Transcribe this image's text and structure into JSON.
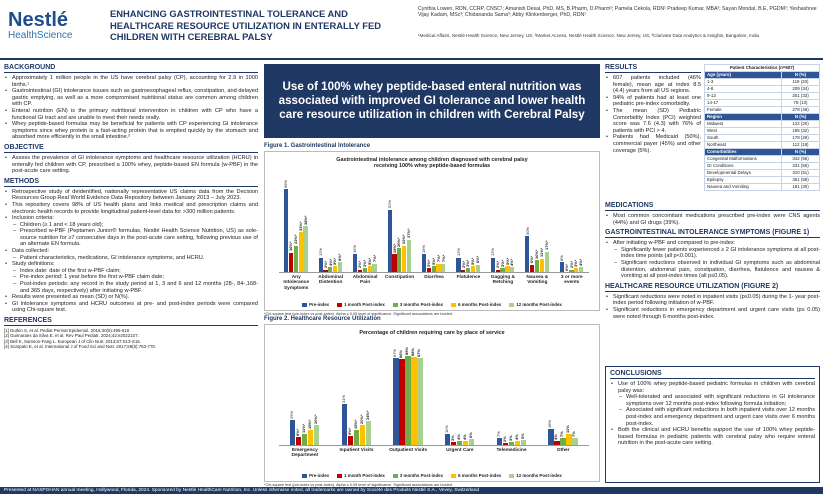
{
  "header": {
    "logo": [
      "Nestlé",
      "HealthScience"
    ],
    "title": "ENHANCING GASTROINTESTINAL TOLERANCE AND HEALTHCARE RESOURCE UTILIZATION IN ENTERALLY FED CHILDREN WITH CEREBRAL PALSY",
    "authors": "Cynthia Lowen, RDN, CCRP, CNSC¹; Amanish Desai, PhD, MS, B.Pharm, D.Pharm²; Pamela Cekola, RDN¹ Pradeep Kumar, MBA²; Sayan Mondal, B.E, PGDM²; Yeshashree Vijay Kadam, MSc³; Chidananda Sama³; Abby Klinkenberger, PhD, RDN¹",
    "affiliations": "¹Medical Affairs, Nestlé Health Science, New Jersey, US; ²Market Access, Nestlé Health Science, New Jersey, US; ³Clarivate Data Analytics & Insights, Bangalore, India"
  },
  "left": [
    {
      "heading": "BACKGROUND",
      "items": [
        {
          "level": 1,
          "text": "Approximately 1 million people in the US have cerebral palsy (CP), accounting for 2.9 in 1000 births.¹"
        },
        {
          "level": 1,
          "text": "Gastrointestinal (GI) intolerance issues such as gastroesophageal reflux, constipation, and delayed gastric emptying, as well as a more compromised nutritional status are common among children with CP."
        },
        {
          "level": 1,
          "text": "Enteral nutrition (EN) is the primary nutritional intervention in children with CP who have a functional GI tract and are unable to meet their needs orally."
        },
        {
          "level": 1,
          "text": "Whey peptide-based formulas may be beneficial for patients with CP experiencing GI intolerance symptoms since whey protein is a fast-acting protein that is emptied quickly by the stomach and absorbed more efficiently in the small intestine.²"
        }
      ]
    },
    {
      "heading": "OBJECTIVE",
      "items": [
        {
          "level": 1,
          "text": "Assess the prevalence of GI intolerance symptoms and healthcare resource utilization (HCRU) in enterally fed children with CP, prescribed a 100% whey, peptide-based EN formula (w-PBF) in the post-acute care setting."
        }
      ]
    },
    {
      "heading": "METHODS",
      "items": [
        {
          "level": 1,
          "text": "Retrospective study of deidentified, nationally representative US claims data from the Decision Resources Group Real World Evidence Data Repository between January 2013 – July 2023."
        },
        {
          "level": 1,
          "text": "This repository covers 98% of US health plans and links medical and prescription claims and electronic health records to provide longitudinal patient-level data for >300 million patients."
        },
        {
          "level": 1,
          "text": "Inclusion criteria:"
        },
        {
          "level": 2,
          "text": "Children (≥ 1 and < 18 years old);"
        },
        {
          "level": 2,
          "text": "Prescribed w-PBF (Peptamen Junior® formulas, Nestlé Health Science Nutrition, US) as sole-source nutrition for ≥7 consecutive days in the post-acute care setting, following previous use of an alternate EN formula."
        },
        {
          "level": 1,
          "text": "Data collected:"
        },
        {
          "level": 2,
          "text": "Patient characteristics, medications, GI intolerance symptoms, and HCRU."
        },
        {
          "level": 1,
          "text": "Study definitions:"
        },
        {
          "level": 2,
          "text": "Index date: date of the first w-PBF claim;"
        },
        {
          "level": 2,
          "text": "Pre-index period: 1 year before the first w-PBF claim date;"
        },
        {
          "level": 2,
          "text": "Post-index periods: any record in the study period at 1, 3 and 6 and 12 months (28-, 84-,168- and 365 days, respectively) after initiating w-PBF."
        },
        {
          "level": 1,
          "text": "Results were presented as mean (SD) or N(%)."
        },
        {
          "level": 1,
          "text": "GI intolerance symptoms and HCRU outcomes at pre- and post-index periods were compared using Chi-square test."
        }
      ]
    },
    {
      "heading": "REFERENCES",
      "items": [
        {
          "level": 0,
          "text": "[1] Durkin S, et al. Pediat Perinat Epidemiol. 2016;30(5):496-510."
        },
        {
          "level": 0,
          "text": "[2] Guimaraes da Silva E, et al. Rev Paul Pediatr. 2024;42:e2022107."
        },
        {
          "level": 0,
          "text": "[3] Bell K, Samson-Fang L. European J of Clin Nutr. 2013;67:S13-S16."
        },
        {
          "level": 0,
          "text": "[4] Scarpato E, et al. International J of Food Sci and Nutr. 2017;68(6):763-770."
        }
      ]
    }
  ],
  "banner": "Use of 100% whey peptide-based enteral nutrition was associated with improved GI tolerance and lower health care resource utilization in children with Cerebral Palsy",
  "figures": [
    {
      "label": "Figure 1. Gastrointestinal Intolerance",
      "title": "Gastrointestinal intolerance among children diagnosed with cerebral palsy receiving 100% whey peptide-based formulas",
      "categories": [
        "Any Intolerance Symptoms",
        "Abdominal Distention",
        "Abdominal Pain",
        "Constipation",
        "Diarrhea",
        "Flatulence",
        "Gagging & Retching",
        "Nausea & Vomiting",
        "3 or more events"
      ],
      "series": [
        {
          "name": "Pre-index",
          "color": "#2e5597",
          "values": [
            69,
            12,
            15,
            52,
            15,
            12,
            12,
            30,
            8
          ],
          "value_labels": [
            "69%",
            "12%",
            "15%",
            "52%",
            "15%",
            "12%",
            "12%",
            "30%",
            "8%"
          ]
        },
        {
          "name": "1 month Post-index",
          "color": "#c00000",
          "values": [
            16,
            2,
            2,
            15,
            3,
            2,
            2,
            6,
            0
          ],
          "value_labels": [
            "16%*",
            "2%*",
            "2%*",
            "15%*",
            "3%*",
            "2%*",
            "2%*",
            "6%*",
            "0%*"
          ]
        },
        {
          "name": "3 months Post-index",
          "color": "#70ad47",
          "values": [
            22,
            4,
            3,
            20,
            5,
            3,
            3,
            10,
            2
          ],
          "value_labels": [
            "22%*",
            "4%*",
            "3%*",
            "20%*",
            "5%*",
            "3%*",
            "3%*",
            "10%*",
            "2%*"
          ]
        },
        {
          "name": "6 months Post-index",
          "color": "#ffc000",
          "values": [
            33,
            5,
            5,
            22,
            7,
            5,
            5,
            11,
            3
          ],
          "value_labels": [
            "33%*",
            "5%*",
            "5%*",
            "22%*",
            "7%*",
            "5%*",
            "5%*",
            "11%*",
            "3%*"
          ]
        },
        {
          "name": "12 months Post-index",
          "color": "#a9d18e",
          "values": [
            38,
            8,
            7,
            27,
            7,
            6,
            4,
            17,
            4
          ],
          "value_labels": [
            "38%*",
            "8%*",
            "7%*",
            "27%*",
            "7%*",
            "6%*",
            "4%*",
            "17%*",
            "4%*"
          ]
        }
      ],
      "note": "*Chi-square test (pre-index vs post-index). Alpha ≤ 0.05 level of significance. Significant associations are bolded."
    },
    {
      "label": "Figure 2. Healthcare Resource Utilization",
      "title": "Percentage of children requiring care by place of service",
      "categories": [
        "Emergency Department",
        "Inpatient Visits",
        "Outpatient Visits",
        "Urgent Care",
        "Telemedicine",
        "Other"
      ],
      "series": [
        {
          "name": "Pre-index",
          "color": "#2e5597",
          "values": [
            25,
            41,
            87,
            11,
            7,
            16
          ],
          "value_labels": [
            "25%",
            "41%",
            "87%",
            "11%",
            "7%",
            "16%"
          ]
        },
        {
          "name": "1 month Post-index",
          "color": "#c00000",
          "values": [
            8,
            9,
            86,
            3,
            2,
            4
          ],
          "value_labels": [
            "8%*",
            "9%*",
            "86%",
            "3%",
            "2%",
            "4%"
          ]
        },
        {
          "name": "3 months Post-index",
          "color": "#70ad47",
          "values": [
            11,
            15,
            89,
            4,
            3,
            7
          ],
          "value_labels": [
            "11%*",
            "15%*",
            "89%",
            "4%",
            "3%",
            "7%"
          ]
        },
        {
          "name": "6 months Post-index",
          "color": "#ffc000",
          "values": [
            15,
            20,
            88,
            4,
            4,
            11
          ],
          "value_labels": [
            "15%*",
            "20%*",
            "88%",
            "4%",
            "4%",
            "11%"
          ]
        },
        {
          "name": "12 months Post-index",
          "color": "#a9d18e",
          "values": [
            20,
            24,
            87,
            6,
            5,
            7
          ],
          "value_labels": [
            "20%*",
            "24%*",
            "87%",
            "6%",
            "5%",
            "7%"
          ]
        }
      ],
      "note": "*Chi-square test (pre-index vs post-index). Alpha ≤ 0.05 level of significance. Significant associations are bolded."
    }
  ],
  "results": {
    "heading": "RESULTS",
    "items": [
      {
        "level": 1,
        "text": "607 patients included (46% female), mean age at index 8.5 (4.4) years from all US regions."
      },
      {
        "level": 1,
        "text": "94% of patients had at least one pediatric pre-index comorbidity."
      },
      {
        "level": 1,
        "text": "The mean (SD) Pediatric Comorbidity Index (PCI) weighted score was 7.6 (4.3) with 76% of patients with PCI > 4."
      },
      {
        "level": 1,
        "text": "Patients had Medicaid (50%), commercial payer (45%) and other coverage (5%)."
      }
    ]
  },
  "table": {
    "title": "Patient Characteristics (n=607)",
    "groups": [
      {
        "name": "Age (years)",
        "unit": "N (%)",
        "rows": [
          [
            "1-3",
            "119 (20)"
          ],
          [
            "4-8",
            "209 (34)"
          ],
          [
            "9-13",
            "201 (33)"
          ],
          [
            "14-17",
            "78 (13)"
          ],
          [
            "Female",
            "278 (46)"
          ]
        ]
      },
      {
        "name": "Region",
        "unit": "N (%)",
        "rows": [
          [
            "Midwest",
            "122 (20)"
          ],
          [
            "West",
            "195 (32)"
          ],
          [
            "South",
            "178 (29)"
          ],
          [
            "Northeast",
            "112 (18)"
          ]
        ]
      },
      {
        "name": "Comorbidities",
        "unit": "N (%)",
        "rows": [
          [
            "Congenital Malformations",
            "342 (56)"
          ],
          [
            "GI Conditions",
            "331 (55)"
          ],
          [
            "Developmental Delays",
            "310 (51)"
          ],
          [
            "Epilepsy",
            "351 (58)"
          ],
          [
            "Nausea and Vomiting",
            "181 (30)"
          ]
        ]
      }
    ]
  },
  "right": [
    {
      "heading": "MEDICATIONS",
      "items": [
        {
          "level": 1,
          "text": "Most common concomitant medications prescribed pre-index were CNS agents (44%) and GI drugs (39%)."
        }
      ]
    },
    {
      "heading": "GASTROINTESTINAL INTOLERANCE SYMPTOMS (FIGURE 1)",
      "items": [
        {
          "level": 1,
          "text": "After initiating w-PBF and compared to pre-index:"
        },
        {
          "level": 2,
          "text": "Significantly fewer patients experienced ≥ 2 GI intolerance symptoms at all post-index time points (all p<0.001)."
        },
        {
          "level": 2,
          "text": "Significant reductions observed in individual GI symptoms such as abdominal distention, abdominal pain, constipation, diarrhea, flatulence and nausea & vomiting at all post-index times (all p≤0.05)."
        }
      ]
    },
    {
      "heading": "HEALTHCARE RESOURCE UTILIZATION (FIGURE 2)",
      "items": [
        {
          "level": 1,
          "text": "Significant reductions were noted in inpatient visits (p≤0.05) during the 1- year post-index period following initiation of w-PBF."
        },
        {
          "level": 1,
          "text": "Significant reductions in emergency department and urgent care visits (p≤ 0.05) were noted through 6 months post-index."
        }
      ]
    }
  ],
  "conclusions": {
    "heading": "CONCLUSIONS",
    "items": [
      {
        "level": 1,
        "text": "Use of 100% whey peptide-based pediatric formulas in children with cerebral palsy was:"
      },
      {
        "level": 2,
        "text": "Well-tolerated and associated with significant reductions in GI intolerance symptoms over 12 months post-index following formula initiation;"
      },
      {
        "level": 2,
        "text": "Associated with significant reductions in both inpatient visits over 12 months post-index and emergency department and urgent care visits over 6 months post-index."
      },
      {
        "level": 1,
        "text": "Both the clinical and HCRU benefits support the use of 100% whey peptide-based formulas in pediatric patients with cerebral palsy who require enteral nutrition in the post-acute care setting."
      }
    ]
  },
  "footer": "Presented at NASPGHAN annual meeting, Hollywood, Florida, 2024. Sponsored by Nestlé HealthCare Nutrition, Inc. Unless otherwise noted, all trademarks are owned by Société des Produits Nestlé S.A., Vevey, Switzerland"
}
